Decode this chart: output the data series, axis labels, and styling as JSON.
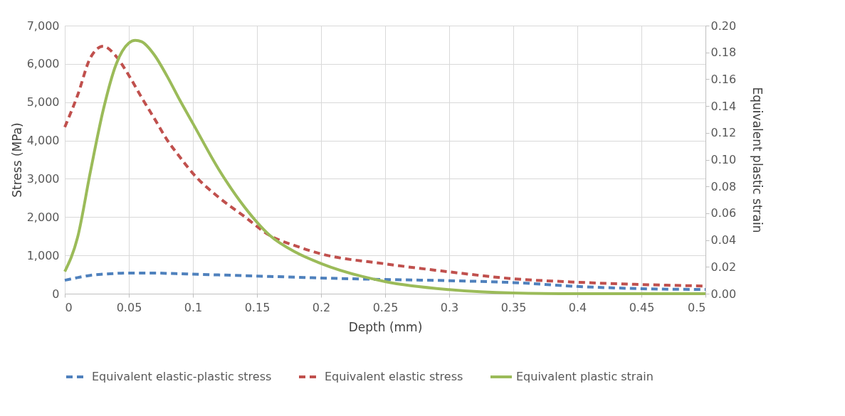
{
  "chart_data": {
    "type": "line",
    "xlabel": "Depth (mm)",
    "ylabel": "Stress (MPa)",
    "y2label": "Equivalent plastic strain",
    "x": [
      0,
      0.01,
      0.02,
      0.03,
      0.04,
      0.05,
      0.06,
      0.07,
      0.08,
      0.09,
      0.1,
      0.12,
      0.14,
      0.16,
      0.18,
      0.2,
      0.25,
      0.3,
      0.35,
      0.4,
      0.45,
      0.5
    ],
    "series": [
      {
        "name": "Equivalent elastic-plastic stress",
        "color": "#4f81bd",
        "line_style": "dashed",
        "values": [
          350,
          420,
          480,
          510,
          530,
          540,
          540,
          540,
          530,
          520,
          510,
          490,
          470,
          450,
          430,
          410,
          370,
          340,
          290,
          190,
          130,
          110
        ]
      },
      {
        "name": "Equivalent elastic stress",
        "color": "#c0504d",
        "line_style": "dashed",
        "values": [
          4350,
          5180,
          6160,
          6460,
          6200,
          5700,
          5120,
          4570,
          4010,
          3560,
          3140,
          2520,
          2020,
          1520,
          1250,
          1040,
          780,
          570,
          390,
          300,
          240,
          200
        ]
      },
      {
        "name": "Equivalent plastic strain",
        "color": "#9bbb59",
        "line_style": "solid",
        "axis": "y2",
        "x": [
          0,
          0.01,
          0.02,
          0.03,
          0.04,
          0.05,
          0.055,
          0.06,
          0.07,
          0.08,
          0.09,
          0.1,
          0.12,
          0.14,
          0.16,
          0.18,
          0.2,
          0.25,
          0.3,
          0.35,
          0.4,
          0.45,
          0.5
        ],
        "values": [
          0.0165,
          0.042,
          0.091,
          0.137,
          0.171,
          0.187,
          0.189,
          0.188,
          0.178,
          0.162,
          0.144,
          0.127,
          0.093,
          0.065,
          0.0435,
          0.031,
          0.0225,
          0.009,
          0.003,
          0.0005,
          0,
          0,
          0
        ]
      }
    ],
    "xlim": [
      0,
      0.5
    ],
    "xticks": [
      0,
      0.05,
      0.1,
      0.15,
      0.2,
      0.25,
      0.3,
      0.35,
      0.4,
      0.45,
      0.5
    ],
    "ylim": [
      0,
      7000
    ],
    "yticks": [
      0,
      {
        "value": 1000,
        "label": "1,000"
      },
      {
        "value": 2000,
        "label": "2,000"
      },
      {
        "value": 3000,
        "label": "3,000"
      },
      {
        "value": 4000,
        "label": "4,000"
      },
      {
        "value": 5000,
        "label": "5,000"
      },
      {
        "value": 6000,
        "label": "6,000"
      },
      {
        "value": 7000,
        "label": "7,000"
      }
    ],
    "y2lim": [
      0,
      0.2
    ],
    "y2ticks": [
      {
        "value": 0,
        "label": "0.00"
      },
      {
        "value": 0.02,
        "label": "0.02"
      },
      {
        "value": 0.04,
        "label": "0.04"
      },
      {
        "value": 0.06,
        "label": "0.06"
      },
      {
        "value": 0.08,
        "label": "0.08"
      },
      {
        "value": 0.1,
        "label": "0.10"
      },
      {
        "value": 0.12,
        "label": "0.12"
      },
      {
        "value": 0.14,
        "label": "0.14"
      },
      {
        "value": 0.16,
        "label": "0.16"
      },
      {
        "value": 0.18,
        "label": "0.18"
      },
      {
        "value": 0.2,
        "label": "0.20"
      }
    ],
    "grid": true,
    "legend": "bottom",
    "marker": "none"
  }
}
